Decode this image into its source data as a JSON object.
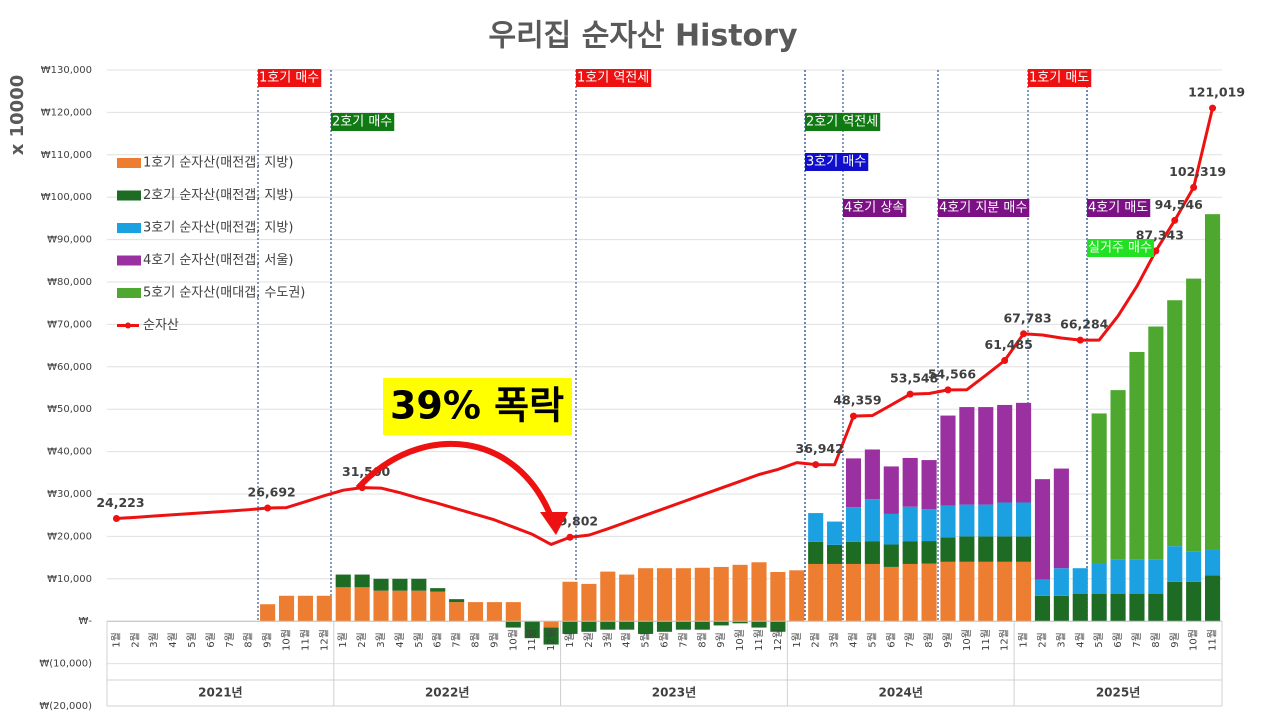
{
  "chart_data": {
    "type": "stacked-bar-line",
    "title": "우리집 순자산 History",
    "y_label": "x 10000",
    "categories": [
      "1월",
      "2월",
      "3월",
      "4월",
      "5월",
      "6월",
      "7월",
      "8월",
      "9월",
      "10월",
      "11월",
      "12월",
      "1월",
      "2월",
      "3월",
      "4월",
      "5월",
      "6월",
      "7월",
      "8월",
      "9월",
      "10월",
      "11월",
      "12월",
      "1월",
      "2월",
      "3월",
      "4월",
      "5월",
      "6월",
      "7월",
      "8월",
      "9월",
      "10월",
      "11월",
      "12월",
      "1월",
      "2월",
      "3월",
      "4월",
      "5월",
      "6월",
      "7월",
      "8월",
      "9월",
      "10월",
      "11월",
      "12월",
      "1월",
      "2월",
      "3월",
      "4월",
      "5월",
      "6월",
      "7월",
      "8월",
      "9월",
      "10월",
      "11월"
    ],
    "groups": [
      "2021년",
      "2022년",
      "2023년",
      "2024년",
      "2025년"
    ],
    "series": [
      {
        "name": "1호기 순자산(매전갭, 지방)",
        "color": "#ed7d31",
        "values": [
          null,
          null,
          null,
          null,
          null,
          null,
          null,
          null,
          4000,
          6000,
          6000,
          6000,
          8000,
          8000,
          7200,
          7200,
          7200,
          7000,
          4500,
          4500,
          4500,
          4500,
          null,
          -1500,
          9300,
          8800,
          11700,
          11000,
          12500,
          12500,
          12500,
          12600,
          12800,
          13300,
          13900,
          11600,
          12000,
          13500,
          13500,
          13500,
          13500,
          12800,
          13500,
          13600,
          14000,
          14000,
          14000,
          14000,
          14000,
          null,
          null,
          null,
          null,
          null,
          null,
          null,
          null,
          null,
          null
        ]
      },
      {
        "name": "2호기 순자산(매전갭, 지방)",
        "color": "#1e6b24",
        "values": [
          null,
          null,
          null,
          null,
          null,
          null,
          null,
          null,
          null,
          null,
          null,
          null,
          3000,
          3000,
          2800,
          2800,
          2800,
          800,
          700,
          null,
          null,
          -1500,
          -4000,
          -4000,
          -3000,
          -2500,
          -2000,
          -2000,
          -3000,
          -2500,
          -2000,
          -2000,
          -1000,
          -500,
          -1500,
          -2500,
          null,
          5200,
          4500,
          5200,
          5300,
          5300,
          5300,
          5300,
          5800,
          6000,
          6000,
          6000,
          6000,
          6000,
          6000,
          6500,
          6500,
          6500,
          6500,
          6500,
          9300,
          9300,
          10800
        ]
      },
      {
        "name": "3호기 순자산(매전갭, 지방)",
        "color": "#1ba1e2",
        "values": [
          null,
          null,
          null,
          null,
          null,
          null,
          null,
          null,
          null,
          null,
          null,
          null,
          null,
          null,
          null,
          null,
          null,
          null,
          null,
          null,
          null,
          null,
          null,
          null,
          null,
          null,
          null,
          null,
          null,
          null,
          null,
          null,
          null,
          null,
          null,
          null,
          null,
          6800,
          5500,
          8200,
          10000,
          7200,
          8200,
          7500,
          7500,
          7500,
          7500,
          8000,
          8000,
          3800,
          6500,
          6000,
          7000,
          8000,
          8000,
          8000,
          8400,
          7200,
          6000
        ]
      },
      {
        "name": "4호기 순자산(매전갭, 서울)",
        "color": "#9b30a0",
        "values": [
          null,
          null,
          null,
          null,
          null,
          null,
          null,
          null,
          null,
          null,
          null,
          null,
          null,
          null,
          null,
          null,
          null,
          null,
          null,
          null,
          null,
          null,
          null,
          null,
          null,
          null,
          null,
          null,
          null,
          null,
          null,
          null,
          null,
          null,
          null,
          null,
          null,
          null,
          null,
          11500,
          11700,
          11200,
          11500,
          11600,
          21200,
          23000,
          23000,
          23000,
          23500,
          23700,
          23500,
          null,
          null,
          null,
          null,
          null,
          null,
          null,
          null
        ]
      },
      {
        "name": "5호기 순자산(매대갭, 수도권)",
        "color": "#4ea72e",
        "values": [
          null,
          null,
          null,
          null,
          null,
          null,
          null,
          null,
          null,
          null,
          null,
          null,
          null,
          null,
          null,
          null,
          null,
          null,
          null,
          null,
          null,
          null,
          null,
          null,
          null,
          null,
          null,
          null,
          null,
          null,
          null,
          null,
          null,
          null,
          null,
          null,
          null,
          null,
          null,
          null,
          null,
          null,
          null,
          null,
          null,
          null,
          null,
          null,
          null,
          null,
          null,
          null,
          35500,
          40000,
          49000,
          55000,
          58000,
          64300,
          79200
        ]
      },
      {
        "name": "순자산",
        "type": "line",
        "color": "#ee1111",
        "values": [
          24223,
          24500,
          24800,
          25100,
          25400,
          25700,
          26000,
          26300,
          26692,
          26800,
          28200,
          29600,
          30900,
          31500,
          31400,
          30300,
          29000,
          27800,
          26500,
          25200,
          23900,
          22200,
          20500,
          18100,
          19802,
          20300,
          21800,
          23400,
          25000,
          26600,
          28200,
          29800,
          31400,
          33000,
          34600,
          35800,
          37400,
          36942,
          36900,
          48359,
          48500,
          51000,
          53548,
          53700,
          54566,
          54600,
          58000,
          61485,
          67783,
          67500,
          66800,
          66284,
          66300,
          72000,
          79000,
          87343,
          94546,
          102319,
          121019
        ],
        "value_labels": [
          "24,223",
          null,
          null,
          null,
          null,
          null,
          null,
          null,
          "26,692",
          null,
          null,
          null,
          null,
          "31,500",
          null,
          null,
          null,
          null,
          null,
          null,
          null,
          null,
          null,
          null,
          "19,802",
          null,
          null,
          null,
          null,
          null,
          null,
          null,
          null,
          null,
          null,
          null,
          null,
          "36,942",
          null,
          "48,359",
          null,
          null,
          "53,548",
          null,
          "54,566",
          null,
          null,
          "61,485",
          "67,783",
          null,
          null,
          "66,284",
          null,
          null,
          null,
          "87,343",
          "94,546",
          "102,319",
          "121,019"
        ]
      }
    ],
    "ylim": [
      -20000,
      130000
    ],
    "yticks": [
      {
        "value": 130000,
        "label": "₩130,000"
      },
      {
        "value": 120000,
        "label": "₩120,000"
      },
      {
        "value": 110000,
        "label": "₩110,000"
      },
      {
        "value": 100000,
        "label": "₩100,000"
      },
      {
        "value": 90000,
        "label": "₩90,000"
      },
      {
        "value": 80000,
        "label": "₩80,000"
      },
      {
        "value": 70000,
        "label": "₩70,000"
      },
      {
        "value": 60000,
        "label": "₩60,000"
      },
      {
        "value": 50000,
        "label": "₩50,000"
      },
      {
        "value": 40000,
        "label": "₩40,000"
      },
      {
        "value": 30000,
        "label": "₩30,000"
      },
      {
        "value": 20000,
        "label": "₩20,000"
      },
      {
        "value": 10000,
        "label": "₩10,000"
      },
      {
        "value": 0,
        "label": "₩-"
      },
      {
        "value": -10000,
        "label": "₩(10,000)"
      },
      {
        "value": -20000,
        "label": "₩(20,000)"
      }
    ],
    "grid": true,
    "legend": "left",
    "annotations": [
      {
        "text": "1호기 매수",
        "color": "#ee1111"
      },
      {
        "text": "2호기 매수",
        "color": "#0f7a12"
      },
      {
        "text": "1호기 역전세",
        "color": "#ee1111"
      },
      {
        "text": "2호기 역전세",
        "color": "#0f7a12"
      },
      {
        "text": "3호기 매수",
        "color": "#1010cc"
      },
      {
        "text": "4호기 상속",
        "color": "#7b1184"
      },
      {
        "text": "4호기 지분 매수",
        "color": "#7b1184"
      },
      {
        "text": "1호기 매도",
        "color": "#ee1111"
      },
      {
        "text": "4호기 매도",
        "color": "#7b1184"
      },
      {
        "text": "실거주 매수",
        "color": "#22e022"
      }
    ],
    "callout": "39% 폭락"
  }
}
